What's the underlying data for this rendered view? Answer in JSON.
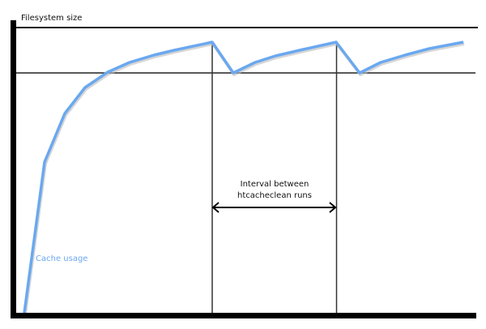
{
  "diagram": {
    "y_axis_label": "Filesystem size",
    "series_label": "Cache usage",
    "interval_label_line1": "Interval between",
    "interval_label_line2": "htcacheclean runs",
    "colors": {
      "curve": "#6aa8f0",
      "axes": "#000000",
      "lines": "#222222"
    }
  }
}
